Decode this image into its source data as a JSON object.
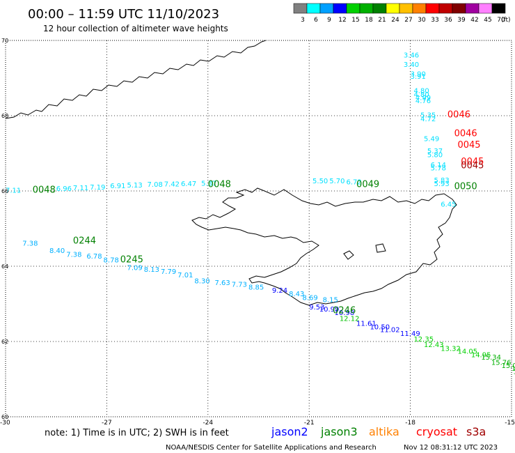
{
  "header": {
    "title": "00:00 – 11:59 UTC 11/10/2023",
    "subtitle": "12 hour collection of altimeter wave heights"
  },
  "legend": {
    "unit": "(ft)",
    "bins": [
      {
        "label": "3",
        "color": "#808080"
      },
      {
        "label": "6",
        "color": "#00ffff"
      },
      {
        "label": "9",
        "color": "#00a0ff"
      },
      {
        "label": "12",
        "color": "#0000ff"
      },
      {
        "label": "15",
        "color": "#00d000"
      },
      {
        "label": "18",
        "color": "#00b000"
      },
      {
        "label": "21",
        "color": "#008000"
      },
      {
        "label": "24",
        "color": "#ffff00"
      },
      {
        "label": "27",
        "color": "#ffc000"
      },
      {
        "label": "30",
        "color": "#ff8000"
      },
      {
        "label": "33",
        "color": "#ff0000"
      },
      {
        "label": "36",
        "color": "#c00000"
      },
      {
        "label": "39",
        "color": "#800000"
      },
      {
        "label": "42",
        "color": "#a000a0"
      },
      {
        "label": "45",
        "color": "#ff80ff"
      },
      {
        "label": "70",
        "color": "#000000"
      }
    ]
  },
  "axes": {
    "lat_labels": [
      "70",
      "68",
      "66",
      "64",
      "62",
      "60"
    ],
    "lon_labels": [
      "-30",
      "-27",
      "-24",
      "-21",
      "-18",
      "-15"
    ]
  },
  "satellites": [
    {
      "name": "jason2",
      "color": "#0000ff"
    },
    {
      "name": "jason3",
      "color": "#008000"
    },
    {
      "name": "altika",
      "color": "#ff8000"
    },
    {
      "name": "cryosat",
      "color": "#ff0000"
    },
    {
      "name": "s3a",
      "color": "#a00000"
    }
  ],
  "footer": {
    "note": "note: 1) Time is in UTC; 2) SWH is in feet",
    "credit": "NOAA/NESDIS Center for Satellite Applications and Research",
    "timestamp": "Nov 12 08:31:12 UTC 2023"
  },
  "track_labels": [
    {
      "text": "0046",
      "lon": -16.9,
      "lat": 67.95,
      "color": "#ff0000"
    },
    {
      "text": "0046",
      "lon": -16.7,
      "lat": 67.45,
      "color": "#ff0000"
    },
    {
      "text": "0045",
      "lon": -16.6,
      "lat": 67.15,
      "color": "#ff0000"
    },
    {
      "text": "0045",
      "lon": -16.5,
      "lat": 66.7,
      "color": "#ff0000"
    },
    {
      "text": "0045",
      "lon": -16.5,
      "lat": 66.6,
      "color": "#a00000"
    },
    {
      "text": "0050",
      "lon": -16.7,
      "lat": 66.05,
      "color": "#008000"
    },
    {
      "text": "0049",
      "lon": -19.6,
      "lat": 66.1,
      "color": "#008000"
    },
    {
      "text": "0048",
      "lon": -24.0,
      "lat": 66.1,
      "color": "#008000"
    },
    {
      "text": "0048",
      "lon": -29.2,
      "lat": 65.95,
      "color": "#008000"
    },
    {
      "text": "0244",
      "lon": -28.0,
      "lat": 64.6,
      "color": "#008000"
    },
    {
      "text": "0245",
      "lon": -26.6,
      "lat": 64.1,
      "color": "#008000"
    },
    {
      "text": "0246",
      "lon": -20.3,
      "lat": 62.75,
      "color": "#008000"
    }
  ],
  "swh": [
    {
      "text": "3.46",
      "lon": -18.2,
      "lat": 69.55,
      "color": "#00e0ff"
    },
    {
      "text": "3.40",
      "lon": -18.2,
      "lat": 69.3,
      "color": "#00e0ff"
    },
    {
      "text": "3.90",
      "lon": -18.0,
      "lat": 69.05,
      "color": "#00e0ff"
    },
    {
      "text": "3.91",
      "lon": -18.0,
      "lat": 68.98,
      "color": "#00e0ff"
    },
    {
      "text": "4.80",
      "lon": -17.9,
      "lat": 68.6,
      "color": "#00e0ff"
    },
    {
      "text": "4.80",
      "lon": -17.9,
      "lat": 68.5,
      "color": "#00e0ff"
    },
    {
      "text": "4.99",
      "lon": -17.85,
      "lat": 68.42,
      "color": "#00e0ff"
    },
    {
      "text": "4.76",
      "lon": -17.85,
      "lat": 68.33,
      "color": "#00e0ff"
    },
    {
      "text": "5.35",
      "lon": -17.7,
      "lat": 67.95,
      "color": "#00e0ff"
    },
    {
      "text": "4.72",
      "lon": -17.7,
      "lat": 67.85,
      "color": "#00e0ff"
    },
    {
      "text": "5.49",
      "lon": -17.6,
      "lat": 67.32,
      "color": "#00e0ff"
    },
    {
      "text": "5.37",
      "lon": -17.5,
      "lat": 67.0,
      "color": "#00e0ff"
    },
    {
      "text": "5.80",
      "lon": -17.5,
      "lat": 66.9,
      "color": "#00e0ff"
    },
    {
      "text": "6.14",
      "lon": -17.4,
      "lat": 66.63,
      "color": "#00e0ff"
    },
    {
      "text": "5.78",
      "lon": -17.4,
      "lat": 66.55,
      "color": "#00e0ff"
    },
    {
      "text": "5.83",
      "lon": -17.3,
      "lat": 66.22,
      "color": "#00e0ff"
    },
    {
      "text": "5.93",
      "lon": -17.3,
      "lat": 66.13,
      "color": "#00e0ff"
    },
    {
      "text": "6.45",
      "lon": -17.1,
      "lat": 65.58,
      "color": "#00e0ff"
    },
    {
      "text": "5.50",
      "lon": -20.9,
      "lat": 66.2,
      "color": "#00e0ff"
    },
    {
      "text": "5.70",
      "lon": -20.4,
      "lat": 66.2,
      "color": "#00e0ff"
    },
    {
      "text": "6.72",
      "lon": -19.9,
      "lat": 66.18,
      "color": "#00e0ff"
    },
    {
      "text": "7.11",
      "lon": -30.0,
      "lat": 65.95,
      "color": "#00e0ff"
    },
    {
      "text": "6.96",
      "lon": -28.5,
      "lat": 66.0,
      "color": "#00e0ff"
    },
    {
      "text": "7.11",
      "lon": -28.0,
      "lat": 66.02,
      "color": "#00e0ff"
    },
    {
      "text": "7.19",
      "lon": -27.5,
      "lat": 66.04,
      "color": "#00e0ff"
    },
    {
      "text": "6.91",
      "lon": -26.9,
      "lat": 66.07,
      "color": "#00e0ff"
    },
    {
      "text": "5.13",
      "lon": -26.4,
      "lat": 66.09,
      "color": "#00e0ff"
    },
    {
      "text": "7.08",
      "lon": -25.8,
      "lat": 66.11,
      "color": "#00e0ff"
    },
    {
      "text": "7.42",
      "lon": -25.3,
      "lat": 66.12,
      "color": "#00e0ff"
    },
    {
      "text": "6.47",
      "lon": -24.8,
      "lat": 66.13,
      "color": "#00e0ff"
    },
    {
      "text": "5.37",
      "lon": -24.2,
      "lat": 66.14,
      "color": "#00e0ff"
    },
    {
      "text": "7.38",
      "lon": -29.5,
      "lat": 64.55,
      "color": "#00b0ff"
    },
    {
      "text": "8.40",
      "lon": -28.7,
      "lat": 64.35,
      "color": "#00b0ff"
    },
    {
      "text": "7.38",
      "lon": -28.2,
      "lat": 64.25,
      "color": "#00b0ff"
    },
    {
      "text": "6.78",
      "lon": -27.6,
      "lat": 64.2,
      "color": "#00b0ff"
    },
    {
      "text": "8.78",
      "lon": -27.1,
      "lat": 64.1,
      "color": "#00b0ff"
    },
    {
      "text": "7.09",
      "lon": -26.4,
      "lat": 63.9,
      "color": "#00b0ff"
    },
    {
      "text": "8.13",
      "lon": -25.9,
      "lat": 63.85,
      "color": "#00b0ff"
    },
    {
      "text": "7.79",
      "lon": -25.4,
      "lat": 63.8,
      "color": "#00b0ff"
    },
    {
      "text": "7.01",
      "lon": -24.9,
      "lat": 63.7,
      "color": "#00b0ff"
    },
    {
      "text": "8.30",
      "lon": -24.4,
      "lat": 63.55,
      "color": "#00b0ff"
    },
    {
      "text": "7.63",
      "lon": -23.8,
      "lat": 63.5,
      "color": "#00b0ff"
    },
    {
      "text": "7.73",
      "lon": -23.3,
      "lat": 63.45,
      "color": "#00b0ff"
    },
    {
      "text": "8.85",
      "lon": -22.8,
      "lat": 63.38,
      "color": "#00b0ff"
    },
    {
      "text": "9.24",
      "lon": -22.1,
      "lat": 63.3,
      "color": "#0000ff"
    },
    {
      "text": "8.43",
      "lon": -21.6,
      "lat": 63.2,
      "color": "#00b0ff"
    },
    {
      "text": "8.69",
      "lon": -21.2,
      "lat": 63.1,
      "color": "#00b0ff"
    },
    {
      "text": "8.15",
      "lon": -20.6,
      "lat": 63.05,
      "color": "#00b0ff"
    },
    {
      "text": "9.53",
      "lon": -21.0,
      "lat": 62.85,
      "color": "#0000ff"
    },
    {
      "text": "10.99",
      "lon": -20.7,
      "lat": 62.8,
      "color": "#0000ff"
    },
    {
      "text": "10.98",
      "lon": -20.25,
      "lat": 62.7,
      "color": "#0000ff"
    },
    {
      "text": "12.12",
      "lon": -20.1,
      "lat": 62.55,
      "color": "#00c000"
    },
    {
      "text": "11.61",
      "lon": -19.6,
      "lat": 62.42,
      "color": "#0000ff"
    },
    {
      "text": "10.50",
      "lon": -19.2,
      "lat": 62.32,
      "color": "#0000ff"
    },
    {
      "text": "11.02",
      "lon": -18.9,
      "lat": 62.25,
      "color": "#0000ff"
    },
    {
      "text": "11.49",
      "lon": -18.3,
      "lat": 62.15,
      "color": "#0000ff"
    },
    {
      "text": "12.35",
      "lon": -17.9,
      "lat": 62.0,
      "color": "#00d000"
    },
    {
      "text": "12.43",
      "lon": -17.6,
      "lat": 61.85,
      "color": "#00d000"
    },
    {
      "text": "13.32",
      "lon": -17.1,
      "lat": 61.75,
      "color": "#00d000"
    },
    {
      "text": "14.05",
      "lon": -16.6,
      "lat": 61.68,
      "color": "#00d000"
    },
    {
      "text": "14.95",
      "lon": -16.2,
      "lat": 61.58,
      "color": "#00d000"
    },
    {
      "text": "15.34",
      "lon": -15.9,
      "lat": 61.52,
      "color": "#00b000"
    },
    {
      "text": "15.76",
      "lon": -15.6,
      "lat": 61.38,
      "color": "#00b000"
    },
    {
      "text": "15.01",
      "lon": -15.3,
      "lat": 61.3,
      "color": "#00b000"
    },
    {
      "text": "16.12",
      "lon": -15.0,
      "lat": 61.22,
      "color": "#00b000"
    },
    {
      "text": "16.16",
      "lon": -14.95,
      "lat": 61.14,
      "color": "#00b000"
    }
  ]
}
